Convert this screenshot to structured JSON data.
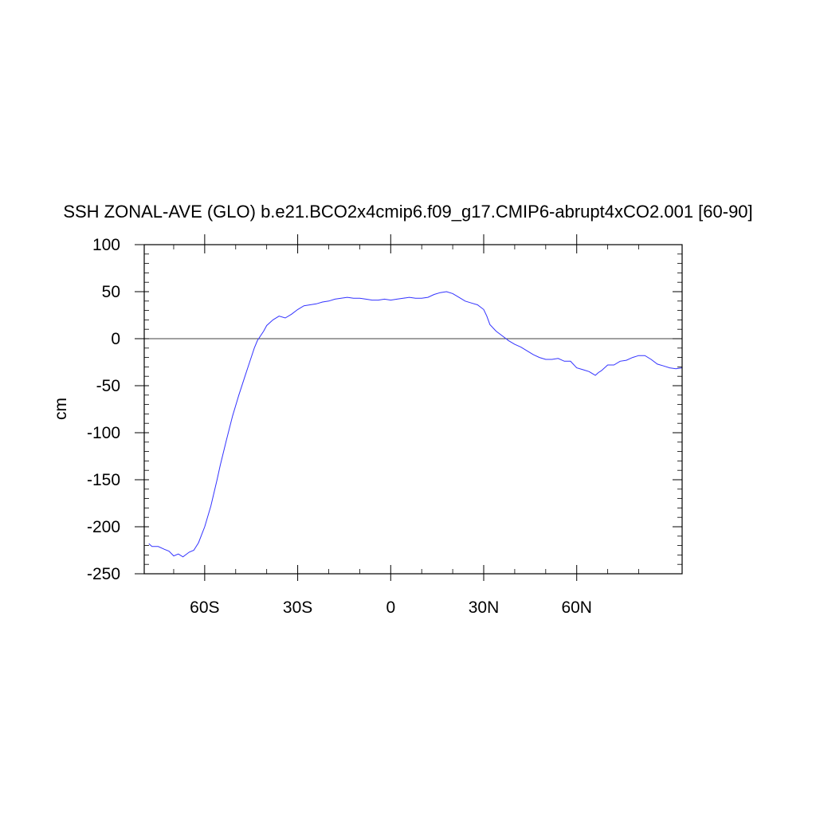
{
  "chart_data": {
    "type": "line",
    "title": "SSH ZONAL-AVE (GLO) b.e21.BCO2x4cmip6.f09_g17.CMIP6-abrupt4xCO2.001 [60-90]",
    "xlabel": "",
    "ylabel": "cm",
    "xlim": [
      -79.5,
      94
    ],
    "ylim": [
      -250,
      100
    ],
    "x_ticks": [
      {
        "value": -60,
        "label": "60S"
      },
      {
        "value": -30,
        "label": "30S"
      },
      {
        "value": 0,
        "label": "0"
      },
      {
        "value": 30,
        "label": "30N"
      },
      {
        "value": 60,
        "label": "60N"
      }
    ],
    "y_ticks": [
      {
        "value": 100,
        "label": "100"
      },
      {
        "value": 50,
        "label": "50"
      },
      {
        "value": 0,
        "label": "0"
      },
      {
        "value": -50,
        "label": "-50"
      },
      {
        "value": -100,
        "label": "-100"
      },
      {
        "value": -150,
        "label": "-150"
      },
      {
        "value": -200,
        "label": "-200"
      },
      {
        "value": -250,
        "label": "-250"
      }
    ],
    "reference_line_y": 0,
    "grid": false,
    "series": [
      {
        "color": "#3333ff",
        "x": [
          -78,
          -77,
          -75,
          -73,
          -71.5,
          -70,
          -68.5,
          -67,
          -65,
          -63.5,
          -62,
          -60,
          -58,
          -56,
          -55,
          -53,
          -51,
          -49,
          -47,
          -46,
          -45,
          -44,
          -43,
          -41,
          -40,
          -38,
          -36,
          -34,
          -32,
          -30,
          -28,
          -26,
          -24,
          -22,
          -20,
          -18,
          -16,
          -14,
          -12,
          -10,
          -8,
          -6,
          -4,
          -2,
          0,
          2,
          4,
          6,
          8,
          10,
          12,
          14,
          16,
          18,
          20,
          22,
          24,
          26,
          28,
          30,
          31,
          32,
          34,
          36,
          38,
          40,
          42,
          44,
          46,
          48,
          50,
          52,
          54,
          56,
          58,
          60,
          62,
          64,
          65,
          66,
          67,
          68,
          70,
          72,
          74,
          76,
          78,
          80,
          82,
          84,
          86,
          88,
          90,
          92,
          94
        ],
        "values": [
          -218,
          -221,
          -221,
          -224,
          -226,
          -231,
          -229,
          -232,
          -227,
          -225,
          -217,
          -200,
          -178,
          -150,
          -135,
          -108,
          -82,
          -60,
          -40,
          -30,
          -20,
          -10,
          -2,
          8,
          14,
          20,
          24,
          22,
          26,
          31,
          35,
          36,
          37,
          39,
          40,
          42,
          43,
          44,
          43,
          43,
          42,
          41,
          41,
          42,
          41,
          42,
          43,
          44,
          43,
          43,
          44,
          47,
          49,
          50,
          48,
          44,
          40,
          38,
          36,
          31,
          24,
          15,
          8,
          3,
          -2,
          -6,
          -9,
          -13,
          -17,
          -20,
          -22,
          -22,
          -21,
          -24,
          -24,
          -31,
          -33,
          -35,
          -37,
          -39,
          -36,
          -34,
          -28,
          -28,
          -24,
          -23,
          -20,
          -18,
          -18,
          -22,
          -27,
          -29,
          -31,
          -32,
          -31
        ]
      }
    ]
  }
}
